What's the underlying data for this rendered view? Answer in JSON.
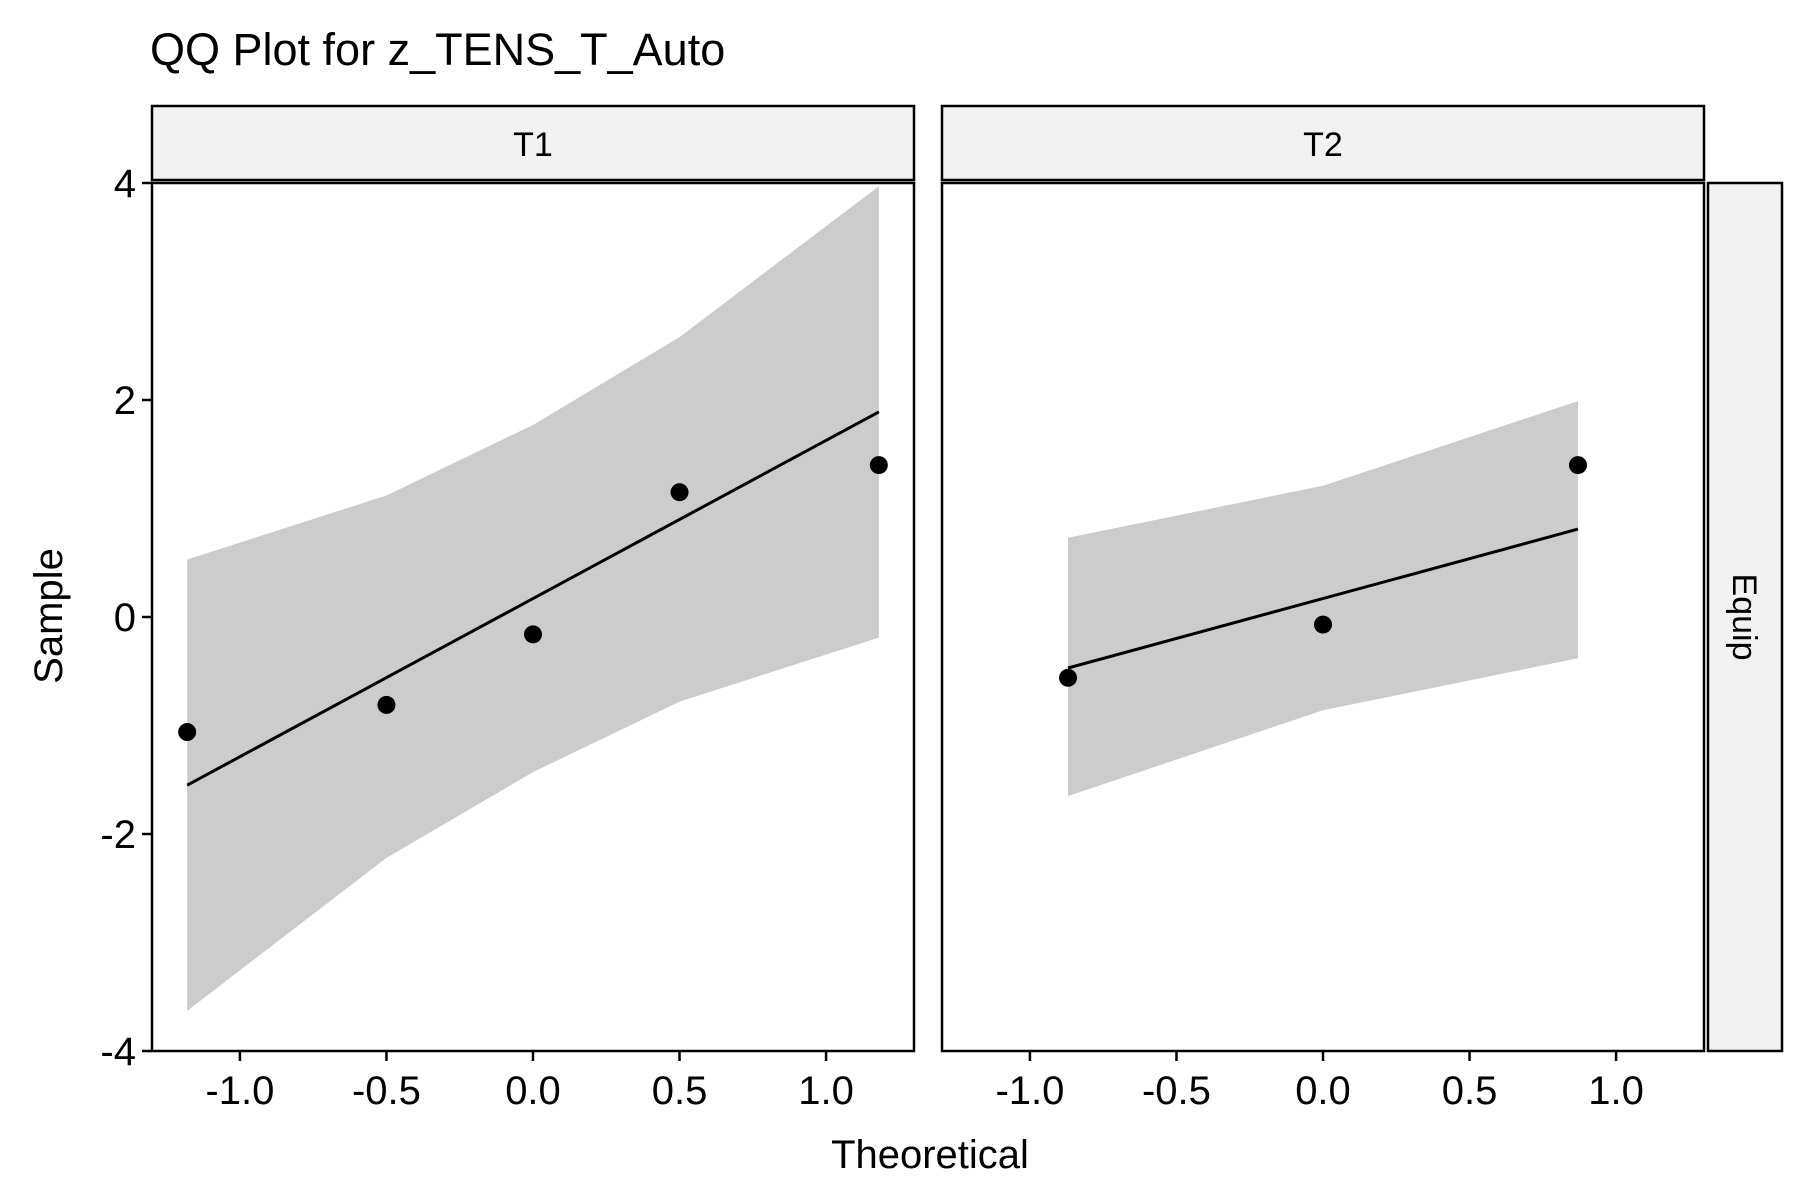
{
  "chart_data": {
    "type": "scatter",
    "title": "QQ Plot for z_TENS_T_Auto",
    "xlabel": "Theoretical",
    "ylabel": "Sample",
    "row_strip": "Equip",
    "ylim": [
      -4,
      4
    ],
    "y_ticks": [
      -4,
      -2,
      0,
      2,
      4
    ],
    "xlim": [
      -1.3,
      1.3
    ],
    "x_ticks": [
      -1.0,
      -0.5,
      0.0,
      0.5,
      1.0
    ],
    "grid": false,
    "colors": {
      "points": "#000000",
      "band": "#cccccc",
      "strip": "#f2f2f2"
    },
    "panels": [
      {
        "label": "T1",
        "points": [
          {
            "x": -1.18,
            "y": -1.06
          },
          {
            "x": -0.5,
            "y": -0.81
          },
          {
            "x": 0.0,
            "y": -0.16
          },
          {
            "x": 0.5,
            "y": 1.15
          },
          {
            "x": 1.18,
            "y": 1.4
          }
        ],
        "line": [
          {
            "x": -1.18,
            "y": -1.55
          },
          {
            "x": 1.18,
            "y": 1.89
          }
        ],
        "band": {
          "x": [
            -1.18,
            -0.5,
            0.0,
            0.5,
            1.18
          ],
          "upper": [
            0.53,
            1.12,
            1.77,
            2.58,
            3.97
          ],
          "lower": [
            -3.63,
            -2.22,
            -1.43,
            -0.78,
            -0.19
          ]
        }
      },
      {
        "label": "T2",
        "points": [
          {
            "x": -0.87,
            "y": -0.56
          },
          {
            "x": 0.0,
            "y": -0.07
          },
          {
            "x": 0.87,
            "y": 1.4
          }
        ],
        "line": [
          {
            "x": -0.87,
            "y": -0.47
          },
          {
            "x": 0.87,
            "y": 0.81
          }
        ],
        "band": {
          "x": [
            -0.87,
            0.0,
            0.87
          ],
          "upper": [
            0.73,
            1.21,
            1.99
          ],
          "lower": [
            -1.65,
            -0.86,
            -0.38
          ]
        }
      }
    ]
  }
}
